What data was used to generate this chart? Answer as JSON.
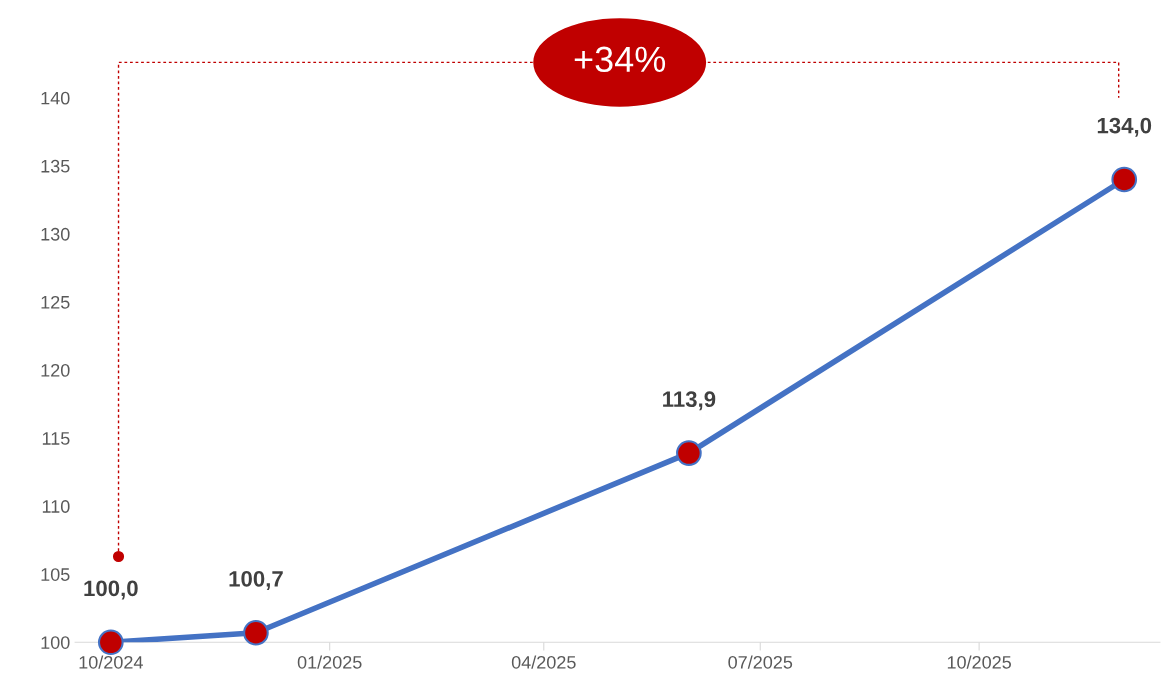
{
  "chart_data": {
    "type": "line",
    "x": [
      "2024-10-01",
      "2024-12-01",
      "2025-06-01",
      "2025-12-01"
    ],
    "series": [
      {
        "color": "#4472c4",
        "values": [
          100.0,
          100.7,
          113.9,
          134.0
        ],
        "value_labels": [
          "100,0",
          "100,7",
          "113,9",
          "134,0"
        ],
        "colors": [
          "#c00000",
          "#c00000",
          "#c00000",
          "#c00000"
        ]
      }
    ],
    "marker": "circle",
    "xlim": [
      "2024-09-16",
      "2025-12-16"
    ],
    "xticks": [
      {
        "value": "2024-10-01",
        "label": "10/2024"
      },
      {
        "value": "2025-01-01",
        "label": "01/2025"
      },
      {
        "value": "2025-04-01",
        "label": "04/2025"
      },
      {
        "value": "2025-07-01",
        "label": "07/2025"
      },
      {
        "value": "2025-10-01",
        "label": "10/2025"
      }
    ],
    "ylim": [
      100,
      140
    ],
    "yticks": [
      100,
      105,
      110,
      115,
      120,
      125,
      130,
      135,
      140
    ],
    "grid": false,
    "annotations": [
      "+34%"
    ]
  }
}
